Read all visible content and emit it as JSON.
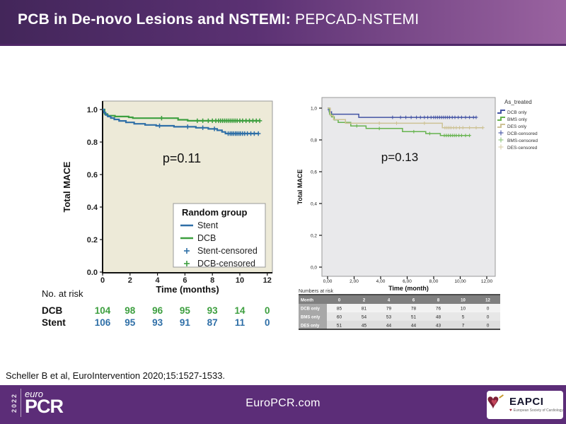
{
  "header": {
    "title_bold": "PCB in De-novo Lesions and NSTEMI:",
    "title_light": "PEPCAD-NSTEMI"
  },
  "citation": "Scheller B et al, EuroIntervention 2020;15:1527-1533.",
  "footer": {
    "url": "EuroPCR.com",
    "logo": {
      "year": "2022",
      "euro": "euro",
      "pcr": "PCR"
    },
    "eapci": {
      "name": "EAPCI",
      "subtitle": "European Society of Cardiology"
    }
  },
  "colors": {
    "header_gradient_left": "#43265a",
    "header_gradient_right": "#9a63a0",
    "footer_purple": "#5c2d78",
    "left_plot_bg": "#edead8",
    "right_plot_bg": "#e9e9eb",
    "stent_blue": "#2f6fa7",
    "dcb_green": "#3d9f3f",
    "dcb_only_blue": "#4353a4",
    "bms_only_green": "#66b34e",
    "des_only_tan": "#cdc295"
  },
  "chart_data": [
    {
      "id": "left",
      "type": "line",
      "subtype": "kaplan_meier",
      "p_value": "p=0.11",
      "xlabel": "Time (months)",
      "ylabel": "Total MACE",
      "xlim": [
        0,
        12.4
      ],
      "ylim": [
        0,
        1.04
      ],
      "xtick_values": [
        0,
        2,
        4,
        6,
        8,
        10,
        12
      ],
      "xtick_labels": [
        "0",
        "2",
        "4",
        "6",
        "8",
        "10",
        "12"
      ],
      "ytick_values": [
        0,
        0.2,
        0.4,
        0.6,
        0.8,
        1.0
      ],
      "ytick_labels": [
        "0.0",
        "0.2",
        "0.4",
        "0.6",
        "0.8",
        "1.0"
      ],
      "legend": {
        "title": "Random group",
        "items": [
          {
            "label": "Stent",
            "type": "line",
            "color": "#2f6fa7"
          },
          {
            "label": "DCB",
            "type": "line",
            "color": "#3d9f3f"
          },
          {
            "label": "Stent-censored",
            "type": "plus",
            "color": "#2f6fa7"
          },
          {
            "label": "DCB-censored",
            "type": "plus",
            "color": "#3d9f3f"
          }
        ]
      },
      "series": [
        {
          "name": "DCB",
          "color": "#3d9f3f",
          "steps": [
            [
              0,
              1.0
            ],
            [
              0.15,
              0.972
            ],
            [
              0.35,
              0.962
            ],
            [
              0.9,
              0.957
            ],
            [
              1.9,
              0.952
            ],
            [
              2.2,
              0.947
            ],
            [
              5.5,
              0.937
            ],
            [
              6.2,
              0.931
            ],
            [
              11.45,
              0.931
            ]
          ],
          "censors": [
            [
              4.3,
              0.947
            ],
            [
              6.9,
              0.931
            ],
            [
              7.3,
              0.931
            ],
            [
              7.7,
              0.931
            ],
            [
              8.0,
              0.931
            ],
            [
              8.25,
              0.931
            ],
            [
              8.45,
              0.931
            ],
            [
              8.6,
              0.931
            ],
            [
              8.75,
              0.931
            ],
            [
              8.9,
              0.931
            ],
            [
              9.05,
              0.931
            ],
            [
              9.2,
              0.931
            ],
            [
              9.35,
              0.931
            ],
            [
              9.5,
              0.931
            ],
            [
              9.65,
              0.931
            ],
            [
              9.8,
              0.931
            ],
            [
              10.0,
              0.931
            ],
            [
              10.2,
              0.931
            ],
            [
              10.45,
              0.931
            ],
            [
              10.7,
              0.931
            ],
            [
              10.95,
              0.931
            ],
            [
              11.2,
              0.931
            ],
            [
              11.45,
              0.931
            ]
          ]
        },
        {
          "name": "Stent",
          "color": "#2f6fa7",
          "steps": [
            [
              0,
              1.0
            ],
            [
              0.1,
              0.981
            ],
            [
              0.22,
              0.967
            ],
            [
              0.38,
              0.957
            ],
            [
              0.6,
              0.948
            ],
            [
              0.85,
              0.939
            ],
            [
              1.2,
              0.93
            ],
            [
              1.7,
              0.921
            ],
            [
              2.3,
              0.912
            ],
            [
              3.1,
              0.905
            ],
            [
              3.9,
              0.9
            ],
            [
              5.2,
              0.894
            ],
            [
              6.8,
              0.888
            ],
            [
              7.7,
              0.881
            ],
            [
              8.35,
              0.872
            ],
            [
              8.7,
              0.862
            ],
            [
              8.95,
              0.852
            ],
            [
              11.35,
              0.852
            ]
          ],
          "censors": [
            [
              4.15,
              0.9
            ],
            [
              6.2,
              0.894
            ],
            [
              7.3,
              0.888
            ],
            [
              8.15,
              0.881
            ],
            [
              9.15,
              0.852
            ],
            [
              9.3,
              0.852
            ],
            [
              9.42,
              0.852
            ],
            [
              9.55,
              0.852
            ],
            [
              9.68,
              0.852
            ],
            [
              9.8,
              0.852
            ],
            [
              9.93,
              0.852
            ],
            [
              10.05,
              0.852
            ],
            [
              10.2,
              0.852
            ],
            [
              10.35,
              0.852
            ],
            [
              10.55,
              0.852
            ],
            [
              10.8,
              0.852
            ],
            [
              11.05,
              0.852
            ],
            [
              11.35,
              0.852
            ]
          ]
        }
      ],
      "at_risk": {
        "style": "rows",
        "label": "No. at risk",
        "rows": [
          {
            "name": "DCB",
            "color": "#3d9f3f",
            "values": [
              "104",
              "98",
              "96",
              "95",
              "93",
              "14",
              "0"
            ]
          },
          {
            "name": "Stent",
            "color": "#2f6fa7",
            "values": [
              "106",
              "95",
              "93",
              "91",
              "87",
              "11",
              "0"
            ]
          }
        ]
      }
    },
    {
      "id": "right",
      "type": "line",
      "subtype": "kaplan_meier",
      "p_value": "p=0.13",
      "xlabel": "Time (month)",
      "ylabel": "Total MACE",
      "xlim": [
        0,
        13
      ],
      "ylim": [
        0,
        1.05
      ],
      "xtick_values": [
        0,
        2,
        4,
        6,
        8,
        10,
        12
      ],
      "xtick_labels": [
        "0,00",
        "2,00",
        "4,00",
        "6,00",
        "8,00",
        "10,00",
        "12,00"
      ],
      "ytick_values": [
        0,
        0.2,
        0.4,
        0.6,
        0.8,
        1.0
      ],
      "ytick_labels": [
        "0,0",
        "0,2",
        "0,4",
        "0,6",
        "0,8",
        "1,0"
      ],
      "legend": {
        "title": "As_treated",
        "items": [
          {
            "label": "DCB only",
            "type": "step",
            "color": "#4353a4"
          },
          {
            "label": "BMS only",
            "type": "step",
            "color": "#66b34e"
          },
          {
            "label": "DES only",
            "type": "step",
            "color": "#cdc295"
          },
          {
            "label": "DCB-censored",
            "type": "plus",
            "color": "#4353a4"
          },
          {
            "label": "BMS-censored",
            "type": "plus",
            "color": "#8bc47a"
          },
          {
            "label": "DES-censored",
            "type": "plus",
            "color": "#d8cfa8"
          }
        ]
      },
      "series": [
        {
          "name": "DCB only",
          "color": "#4353a4",
          "steps": [
            [
              0,
              1.0
            ],
            [
              0.12,
              0.977
            ],
            [
              0.3,
              0.962
            ],
            [
              2.35,
              0.942
            ],
            [
              11.2,
              0.942
            ]
          ],
          "censors": [
            [
              0.12,
              0.99
            ],
            [
              4.9,
              0.942
            ],
            [
              5.5,
              0.942
            ],
            [
              5.9,
              0.942
            ],
            [
              6.3,
              0.942
            ],
            [
              6.7,
              0.942
            ],
            [
              7.0,
              0.942
            ],
            [
              7.3,
              0.942
            ],
            [
              7.55,
              0.942
            ],
            [
              7.8,
              0.942
            ],
            [
              8.0,
              0.942
            ],
            [
              8.15,
              0.942
            ],
            [
              8.3,
              0.942
            ],
            [
              8.45,
              0.942
            ],
            [
              8.6,
              0.942
            ],
            [
              8.75,
              0.942
            ],
            [
              8.9,
              0.942
            ],
            [
              9.05,
              0.942
            ],
            [
              9.2,
              0.942
            ],
            [
              9.4,
              0.942
            ],
            [
              9.6,
              0.942
            ],
            [
              9.85,
              0.942
            ],
            [
              10.1,
              0.942
            ],
            [
              10.4,
              0.942
            ],
            [
              10.7,
              0.942
            ],
            [
              11.0,
              0.942
            ],
            [
              11.2,
              0.942
            ]
          ]
        },
        {
          "name": "BMS only",
          "color": "#66b34e",
          "steps": [
            [
              0,
              1.0
            ],
            [
              0.15,
              0.962
            ],
            [
              0.3,
              0.945
            ],
            [
              0.5,
              0.926
            ],
            [
              0.8,
              0.91
            ],
            [
              1.75,
              0.888
            ],
            [
              2.9,
              0.872
            ],
            [
              5.65,
              0.852
            ],
            [
              7.4,
              0.84
            ],
            [
              8.5,
              0.828
            ],
            [
              10.7,
              0.828
            ]
          ],
          "censors": [
            [
              2.2,
              0.888
            ],
            [
              3.9,
              0.872
            ],
            [
              6.5,
              0.852
            ],
            [
              7.7,
              0.84
            ],
            [
              8.8,
              0.828
            ],
            [
              8.95,
              0.828
            ],
            [
              9.1,
              0.828
            ],
            [
              9.25,
              0.828
            ],
            [
              9.4,
              0.828
            ],
            [
              9.55,
              0.828
            ],
            [
              9.7,
              0.828
            ],
            [
              9.9,
              0.828
            ],
            [
              10.1,
              0.828
            ],
            [
              10.4,
              0.828
            ],
            [
              10.7,
              0.828
            ]
          ]
        },
        {
          "name": "DES only",
          "color": "#cdc295",
          "steps": [
            [
              0,
              1.0
            ],
            [
              0.2,
              0.953
            ],
            [
              0.45,
              0.928
            ],
            [
              1.35,
              0.905
            ],
            [
              8.65,
              0.877
            ],
            [
              11.7,
              0.877
            ]
          ],
          "censors": [
            [
              3.9,
              0.905
            ],
            [
              5.2,
              0.905
            ],
            [
              7.3,
              0.905
            ],
            [
              8.85,
              0.877
            ],
            [
              9.0,
              0.877
            ],
            [
              9.15,
              0.877
            ],
            [
              9.3,
              0.877
            ],
            [
              9.5,
              0.877
            ],
            [
              9.7,
              0.877
            ],
            [
              9.95,
              0.877
            ],
            [
              10.2,
              0.877
            ],
            [
              10.7,
              0.877
            ],
            [
              11.2,
              0.877
            ],
            [
              11.7,
              0.877
            ]
          ]
        }
      ],
      "at_risk": {
        "style": "table",
        "label": "Numbers at risk",
        "header": [
          "Month",
          "0",
          "2",
          "4",
          "6",
          "8",
          "10",
          "12"
        ],
        "rows": [
          {
            "name": "DCB only",
            "values": [
              "85",
              "81",
              "79",
              "78",
              "76",
              "10",
              "0"
            ]
          },
          {
            "name": "BMS only",
            "values": [
              "60",
              "54",
              "53",
              "51",
              "48",
              "5",
              "0"
            ]
          },
          {
            "name": "DES only",
            "values": [
              "51",
              "45",
              "44",
              "44",
              "43",
              "7",
              "0"
            ]
          }
        ]
      }
    }
  ]
}
